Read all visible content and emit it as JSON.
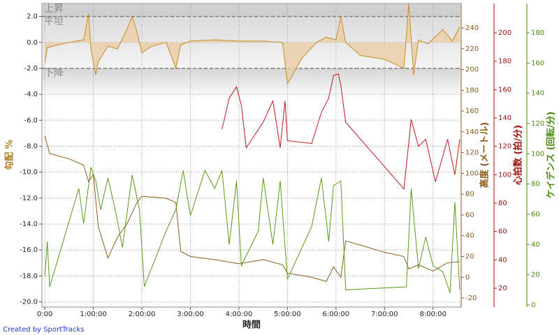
{
  "chart_data": {
    "type": "line",
    "x_label": "時間",
    "credit": "Created by SportTracks",
    "xlim": [
      -0.06,
      8.58
    ],
    "xticks": [
      {
        "value": 0,
        "label": "0:00"
      },
      {
        "value": 1,
        "label": "1:00:00"
      },
      {
        "value": 2,
        "label": "2:00:00"
      },
      {
        "value": 3,
        "label": "3:00:00"
      },
      {
        "value": 4,
        "label": "4:00:00"
      },
      {
        "value": 5,
        "label": "5:00:00"
      },
      {
        "value": 6,
        "label": "6:00:00"
      },
      {
        "value": 7,
        "label": "7:00:00"
      },
      {
        "value": 8,
        "label": "8:00:00"
      }
    ],
    "y_label": "勾配 %",
    "ylim": [
      -20.4,
      3.0
    ],
    "yticks": [
      {
        "value": 2,
        "label": "2.0"
      },
      {
        "value": 0,
        "label": "0.0"
      },
      {
        "value": -2,
        "label": "-2.0"
      },
      {
        "value": -4,
        "label": "-4.0"
      },
      {
        "value": -6,
        "label": "-6.0"
      },
      {
        "value": -8,
        "label": "-8.0"
      },
      {
        "value": -10,
        "label": "-10.0"
      },
      {
        "value": -12,
        "label": "-12.0"
      },
      {
        "value": -14,
        "label": "-14.0"
      },
      {
        "value": -16,
        "label": "-16.0"
      },
      {
        "value": -18,
        "label": "-18.0"
      },
      {
        "value": -20,
        "label": "-20.0"
      }
    ],
    "y2_label": "高度 (メートル)",
    "y2lim": [
      -28.7,
      263.5
    ],
    "y2ticks": [
      -20,
      0,
      20,
      40,
      60,
      80,
      100,
      120,
      140,
      160,
      180,
      200,
      220,
      240
    ],
    "y3_label": "心拍数 (拍/分)",
    "y3lim": [
      6.7,
      220.7
    ],
    "y3ticks": [
      20,
      40,
      60,
      80,
      100,
      120,
      140,
      160,
      180,
      200
    ],
    "y4_label": "ケイデンス (回転/分)",
    "y4lim": [
      -1.4,
      199.4
    ],
    "y4ticks": [
      0,
      20,
      40,
      60,
      80,
      100,
      120,
      140,
      160,
      180
    ],
    "grid": true,
    "grade_reference_lines": [
      2,
      -2
    ],
    "grade_zones": [
      "上昇",
      "平坦",
      "下降"
    ],
    "series": [
      {
        "name": "勾配",
        "axis": "y",
        "color": "#c98a2a",
        "fill": "#e9cfa8",
        "x": [
          0,
          0.05,
          0.15,
          0.5,
          0.8,
          0.9,
          0.95,
          1.05,
          1.1,
          1.3,
          1.5,
          1.7,
          1.8,
          1.9,
          2.0,
          2.2,
          2.5,
          2.7,
          2.8,
          3.0,
          3.5,
          4.0,
          4.5,
          4.9,
          5.0,
          5.3,
          5.6,
          5.8,
          6.0,
          6.1,
          6.2,
          6.5,
          7.0,
          7.4,
          7.5,
          7.6,
          7.7,
          7.9,
          8.2,
          8.4,
          8.55
        ],
        "values": [
          -1.6,
          -0.4,
          -0.3,
          0,
          0.2,
          2.2,
          -0.5,
          -2.5,
          -1.5,
          -0.3,
          -0.5,
          1.1,
          2.0,
          0.8,
          -0.8,
          -0.3,
          0,
          -2.0,
          -0.2,
          0.1,
          0.2,
          0.1,
          0.1,
          0,
          -3.2,
          -1.2,
          0,
          0.4,
          0.2,
          2.0,
          0,
          -1,
          -1.3,
          -2,
          3.0,
          -2.5,
          0.2,
          -0.1,
          1.0,
          0.1,
          1.2
        ]
      },
      {
        "name": "高度",
        "axis": "y2",
        "color": "#8b5a1a",
        "x": [
          0,
          0.1,
          0.5,
          0.8,
          0.9,
          1.0,
          1.1,
          1.3,
          1.5,
          1.7,
          1.9,
          2.0,
          2.5,
          2.7,
          2.8,
          3.0,
          3.5,
          4.0,
          4.5,
          4.9,
          5.0,
          5.5,
          5.8,
          5.95,
          6.1,
          6.2,
          6.5,
          7.0,
          7.4,
          7.5,
          7.7,
          8.0,
          8.3,
          8.55
        ],
        "values": [
          136,
          119,
          114,
          108,
          92,
          99,
          49,
          18.5,
          39,
          52,
          72,
          78,
          76,
          72,
          25,
          20,
          17,
          13,
          17,
          12,
          4,
          0,
          -4,
          10,
          0,
          35,
          31,
          24,
          20,
          8,
          12,
          6,
          14,
          15
        ]
      },
      {
        "name": "心拍数",
        "axis": "y3",
        "color": "#c01818",
        "x": [
          3.65,
          3.8,
          3.95,
          4.05,
          4.15,
          4.5,
          4.7,
          4.85,
          4.95,
          5.0,
          5.5,
          5.7,
          5.85,
          5.95,
          6.05,
          6.1,
          6.2,
          7.4,
          7.55,
          7.7,
          7.85,
          8.05,
          8.3,
          8.45,
          8.55
        ],
        "values": [
          132,
          154,
          162,
          149,
          119,
          137,
          152,
          119,
          152,
          124,
          122,
          144,
          154,
          170,
          171,
          163,
          137,
          90,
          139,
          120,
          125,
          95,
          125,
          100,
          125
        ]
      },
      {
        "name": "ケイデンス",
        "axis": "y4",
        "color": "#5a9a1a",
        "x": [
          0,
          0.05,
          0.1,
          0.7,
          0.8,
          0.95,
          1.05,
          1.15,
          1.3,
          1.45,
          1.6,
          1.8,
          1.95,
          2.05,
          2.5,
          2.7,
          2.85,
          3.0,
          3.3,
          3.5,
          3.65,
          3.8,
          3.95,
          4.05,
          4.4,
          4.5,
          4.7,
          4.85,
          5.0,
          5.5,
          5.7,
          5.85,
          5.95,
          6.1,
          6.2,
          7.45,
          7.55,
          7.7,
          7.85,
          8.0,
          8.2,
          8.35,
          8.45,
          8.55
        ],
        "values": [
          19,
          42,
          12,
          77,
          54,
          91,
          82,
          63,
          84,
          63,
          38,
          86,
          63,
          12,
          49,
          63,
          89,
          59,
          89,
          77,
          89,
          40,
          82,
          26,
          49,
          84,
          40,
          82,
          17,
          52,
          84,
          42,
          79,
          82,
          10,
          12,
          77,
          24,
          45,
          26,
          22,
          8,
          68,
          10
        ]
      }
    ]
  }
}
